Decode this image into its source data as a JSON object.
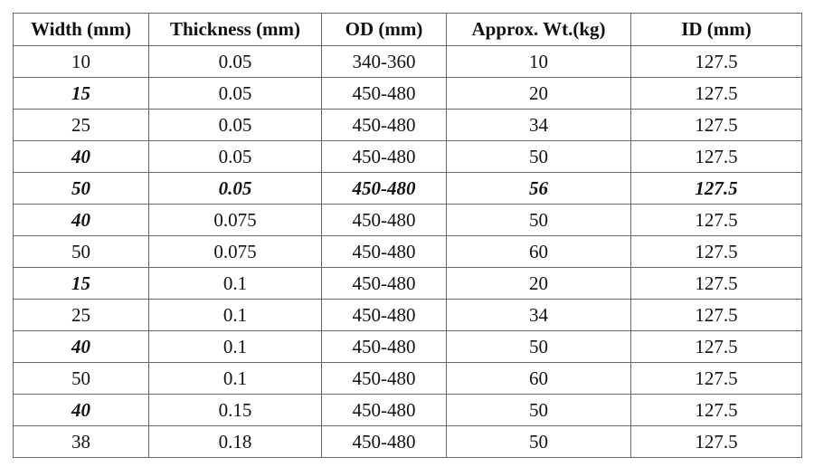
{
  "table": {
    "headers": [
      "Width (mm)",
      "Thickness (mm)",
      "OD (mm)",
      "Approx. Wt.(kg)",
      "ID (mm)"
    ],
    "rows": [
      [
        "10",
        "0.05",
        "340-360",
        "10",
        "127.5"
      ],
      [
        "15",
        "0.05",
        "450-480",
        "20",
        "127.5"
      ],
      [
        "25",
        "0.05",
        "450-480",
        "34",
        "127.5"
      ],
      [
        "40",
        "0.05",
        "450-480",
        "50",
        "127.5"
      ],
      [
        "50",
        "0.05",
        "450-480",
        "56",
        "127.5"
      ],
      [
        "40",
        "0.075",
        "450-480",
        "50",
        "127.5"
      ],
      [
        "50",
        "0.075",
        "450-480",
        "60",
        "127.5"
      ],
      [
        "15",
        "0.1",
        "450-480",
        "20",
        "127.5"
      ],
      [
        "25",
        "0.1",
        "450-480",
        "34",
        "127.5"
      ],
      [
        "40",
        "0.1",
        "450-480",
        "50",
        "127.5"
      ],
      [
        "50",
        "0.1",
        "450-480",
        "60",
        "127.5"
      ],
      [
        "40",
        "0.15",
        "450-480",
        "50",
        "127.5"
      ],
      [
        "38",
        "0.18",
        "450-480",
        "50",
        "127.5"
      ]
    ]
  }
}
